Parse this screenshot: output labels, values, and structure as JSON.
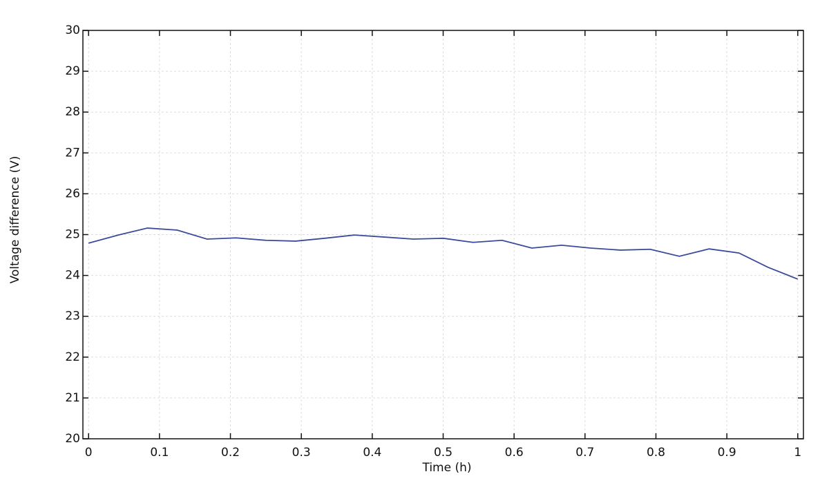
{
  "chart_data": {
    "type": "line",
    "xlabel": "Time (h)",
    "ylabel": "Voltage difference  (V)",
    "x": [
      0,
      0.042,
      0.083,
      0.125,
      0.167,
      0.208,
      0.25,
      0.292,
      0.333,
      0.375,
      0.417,
      0.458,
      0.5,
      0.542,
      0.583,
      0.625,
      0.667,
      0.708,
      0.75,
      0.792,
      0.833,
      0.875,
      0.917,
      0.958,
      1
    ],
    "series": [
      {
        "color": "#3a4a9a",
        "values": [
          24.79,
          24.99,
          25.16,
          25.11,
          24.89,
          24.92,
          24.86,
          24.84,
          24.91,
          24.99,
          24.94,
          24.89,
          24.91,
          24.81,
          24.86,
          24.67,
          24.74,
          24.67,
          24.62,
          24.64,
          24.47,
          24.65,
          24.55,
          24.2,
          23.91
        ]
      }
    ],
    "xlim": [
      -0.008,
      1.008
    ],
    "ylim": [
      20,
      30
    ],
    "xticks": [
      0,
      0.1,
      0.2,
      0.3,
      0.4,
      0.5,
      0.6,
      0.7,
      0.8,
      0.9,
      1
    ],
    "yticks": [
      20,
      21,
      22,
      23,
      24,
      25,
      26,
      27,
      28,
      29,
      30
    ],
    "grid": true
  }
}
